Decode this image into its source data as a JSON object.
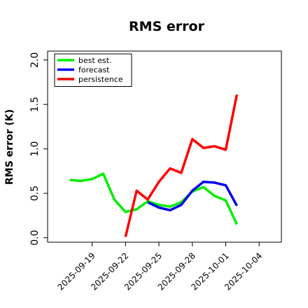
{
  "chart_data": {
    "type": "line",
    "title": "RMS error",
    "xlabel": "",
    "ylabel": "RMS error (K)",
    "ylim": [
      -0.05,
      2.1
    ],
    "yticks": [
      0.0,
      0.5,
      1.0,
      1.5,
      2.0
    ],
    "ytick_labels": [
      "0.0",
      "0.5",
      "1.0",
      "1.5",
      "2.0"
    ],
    "x": [
      "2025-09-17",
      "2025-09-18",
      "2025-09-19",
      "2025-09-20",
      "2025-09-21",
      "2025-09-22",
      "2025-09-23",
      "2025-09-24",
      "2025-09-25",
      "2025-09-26",
      "2025-09-27",
      "2025-09-28",
      "2025-09-29",
      "2025-09-30",
      "2025-10-01",
      "2025-10-02",
      "2025-10-03"
    ],
    "xlim": [
      "2025-09-15",
      "2025-10-06"
    ],
    "xticks": [
      {
        "date": "2025-09-19",
        "label": "2025-09-19",
        "color": "#000000"
      },
      {
        "date": "2025-09-22",
        "label": "2025-09-22",
        "color": "#000000"
      },
      {
        "date": "2025-09-25",
        "label": "2025-09-25",
        "color": "#228b22"
      },
      {
        "date": "2025-09-28",
        "label": "2025-09-28",
        "color": "#000000"
      },
      {
        "date": "2025-10-01",
        "label": "2025-10-01",
        "color": "#000000"
      },
      {
        "date": "2025-10-04",
        "label": "2025-10-04",
        "color": "#000000"
      }
    ],
    "series": [
      {
        "name": "best est.",
        "color": "#00ee00",
        "values": [
          0.65,
          0.64,
          0.66,
          0.72,
          0.43,
          0.29,
          0.32,
          0.41,
          0.37,
          0.35,
          0.4,
          0.52,
          0.57,
          0.47,
          0.42,
          0.15,
          null
        ]
      },
      {
        "name": "forecast",
        "color": "#0000ee",
        "values": [
          null,
          null,
          null,
          null,
          null,
          null,
          null,
          0.4,
          0.34,
          0.31,
          0.37,
          0.53,
          0.63,
          0.62,
          0.59,
          0.36,
          null
        ]
      },
      {
        "name": "persistence",
        "color": "#ff0000",
        "values": [
          null,
          null,
          null,
          null,
          null,
          0.01,
          0.53,
          0.43,
          0.63,
          0.78,
          0.73,
          1.11,
          1.01,
          1.03,
          0.99,
          1.61,
          null
        ]
      }
    ],
    "legend_position": "top-left",
    "grid": false
  }
}
